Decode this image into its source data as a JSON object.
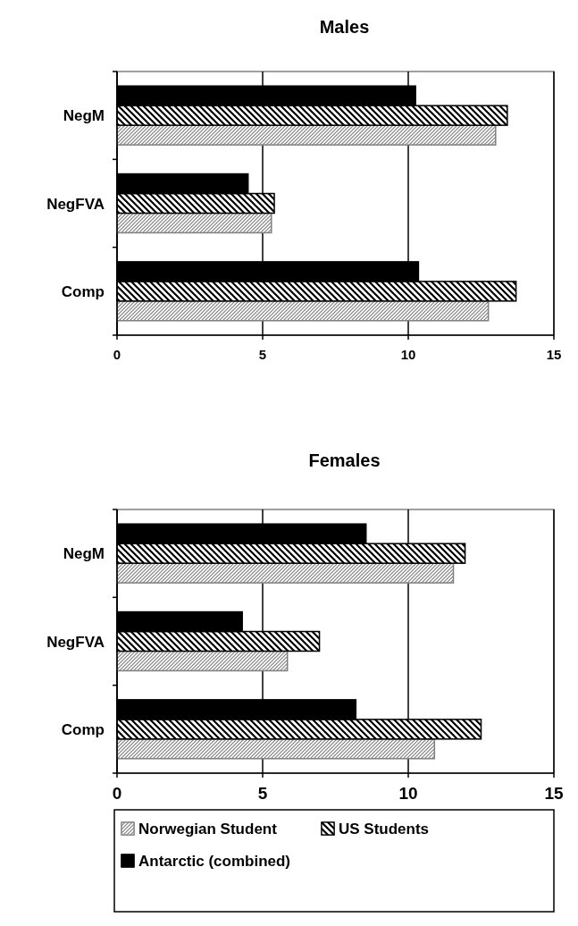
{
  "chart_data": [
    {
      "type": "bar",
      "orientation": "horizontal",
      "title": "Males",
      "categories": [
        "NegM",
        "NegFVA",
        "Comp"
      ],
      "xlim": [
        0,
        15
      ],
      "xticks": [
        0,
        5,
        10,
        15
      ],
      "grid": "x",
      "legend": "bottom",
      "series": [
        {
          "name": "Norwegian Student",
          "color": "#808080",
          "values": [
            13.0,
            5.3,
            12.75
          ]
        },
        {
          "name": "US Students",
          "color": "#000000",
          "values": [
            13.4,
            5.4,
            13.7
          ]
        },
        {
          "name": "Antarctic (combined)",
          "color": "#000000",
          "values": [
            10.25,
            4.5,
            10.35
          ]
        }
      ]
    },
    {
      "type": "bar",
      "orientation": "horizontal",
      "title": "Females",
      "categories": [
        "NegM",
        "NegFVA",
        "Comp"
      ],
      "xlim": [
        0,
        15
      ],
      "xticks": [
        0,
        5,
        10,
        15
      ],
      "grid": "x",
      "legend": "bottom",
      "series": [
        {
          "name": "Norwegian Student",
          "color": "#808080",
          "values": [
            11.55,
            5.85,
            10.9
          ]
        },
        {
          "name": "US Students",
          "color": "#000000",
          "values": [
            11.95,
            6.95,
            12.5
          ]
        },
        {
          "name": "Antarctic (combined)",
          "color": "#000000",
          "values": [
            8.55,
            4.3,
            8.2
          ]
        }
      ]
    }
  ]
}
